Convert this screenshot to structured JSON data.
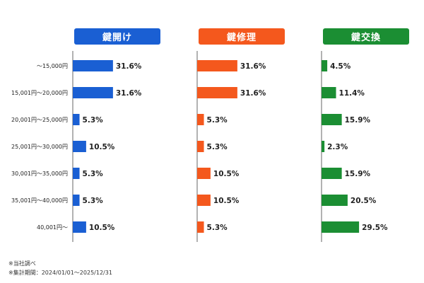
{
  "chart_data": {
    "type": "bar",
    "orientation": "horizontal",
    "categories": [
      "～15,000円",
      "15,001円～20,000円",
      "20,001円～25,000円",
      "25,001円～30,000円",
      "30,001円～35,000円",
      "35,001円～40,000円",
      "40,001円～"
    ],
    "series": [
      {
        "name": "鍵開け",
        "color": "#1a5fd3",
        "values": [
          31.6,
          31.6,
          5.3,
          10.5,
          5.3,
          5.3,
          10.5
        ]
      },
      {
        "name": "鍵修理",
        "color": "#f4581d",
        "values": [
          31.6,
          31.6,
          5.3,
          5.3,
          10.5,
          10.5,
          5.3
        ]
      },
      {
        "name": "鍵交換",
        "color": "#1b8e33",
        "values": [
          4.5,
          11.4,
          15.9,
          2.3,
          15.9,
          20.5,
          29.5
        ]
      }
    ],
    "value_suffix": "%"
  },
  "notes": [
    "※当社調べ",
    "※集計期間：2024/01/01～2025/12/31"
  ]
}
